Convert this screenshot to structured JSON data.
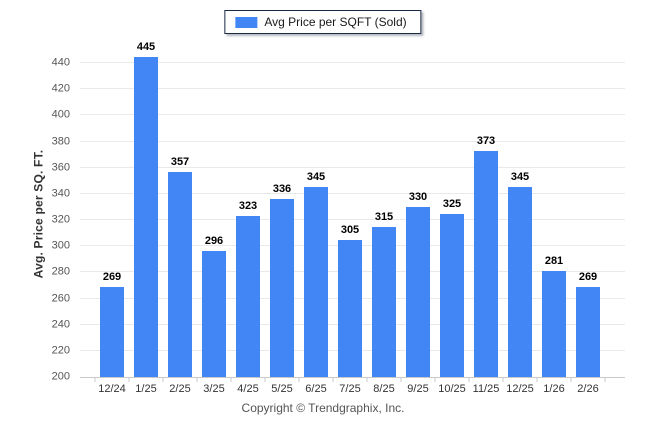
{
  "chart_data": {
    "type": "bar",
    "title": "",
    "legend": [
      "Avg Price per SQFT (Sold)"
    ],
    "legend_position": "top-center",
    "categories": [
      "12/24",
      "1/25",
      "2/25",
      "3/25",
      "4/25",
      "5/25",
      "6/25",
      "7/25",
      "8/25",
      "9/25",
      "10/25",
      "11/25",
      "12/25",
      "1/26",
      "2/26"
    ],
    "values": [
      269,
      445,
      357,
      296,
      323,
      336,
      345,
      305,
      315,
      330,
      325,
      373,
      345,
      281,
      269
    ],
    "xlabel": "",
    "ylabel": "Avg. Price per SQ. FT.",
    "ylim": [
      200,
      450
    ],
    "yticks": {
      "min": 200,
      "max": 440,
      "step": 20
    },
    "grid": "horizontal",
    "value_labels": true,
    "bar_color": "#4285f4"
  },
  "footer": {
    "copyright": "Copyright © Trendgraphix, Inc."
  }
}
